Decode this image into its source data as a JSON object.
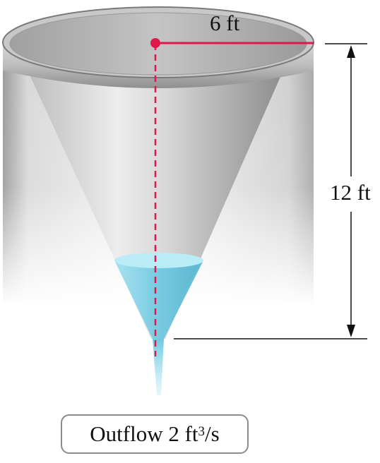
{
  "labels": {
    "radius": "6 ft",
    "height": "12 ft",
    "outflow_prefix": "Outflow 2 ft",
    "outflow_exponent": "3",
    "outflow_suffix": "/s"
  },
  "colors": {
    "radius_line": "#e0174a",
    "center_dot": "#e0174a",
    "axis_dashed": "#e0174a",
    "water": "#7fd3e8",
    "water_surface": "#b9ecf7",
    "tank_metal": "#b5b5b5",
    "dimension_line": "#111111",
    "outflow_border": "#8c8c8c"
  }
}
